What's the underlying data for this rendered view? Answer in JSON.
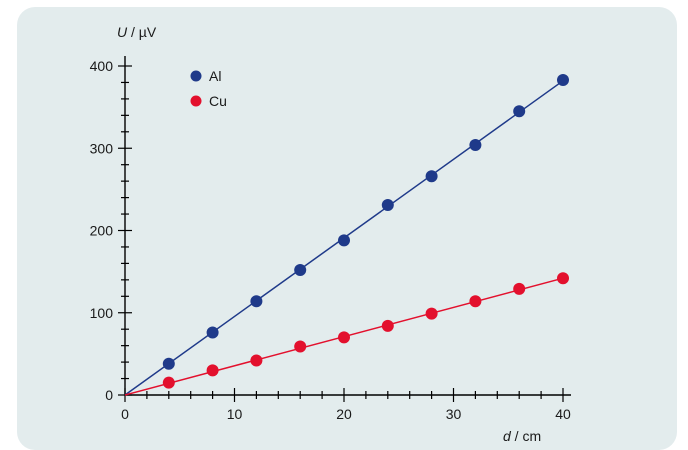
{
  "chart_data": {
    "type": "scatter",
    "xlabel_symbol": "d",
    "xlabel_unit": " / cm",
    "ylabel_symbol": "U",
    "ylabel_unit": " / µV",
    "xlim": [
      0,
      40
    ],
    "ylim": [
      0,
      400
    ],
    "x_major_ticks": [
      0,
      10,
      20,
      30,
      40
    ],
    "y_major_ticks": [
      0,
      100,
      200,
      300,
      400
    ],
    "x_minor_step": 2,
    "y_minor_step": 20,
    "grid": false,
    "legend_position": "top-left",
    "series": [
      {
        "name": "Al",
        "color": "#1f3a8a",
        "x": [
          4,
          8,
          12,
          16,
          20,
          24,
          28,
          32,
          36,
          40
        ],
        "y": [
          38,
          76,
          114,
          152,
          188,
          231,
          266,
          304,
          345,
          383
        ],
        "fit_line": {
          "from": [
            0,
            0
          ],
          "to": [
            40,
            382
          ]
        }
      },
      {
        "name": "Cu",
        "color": "#e3102d",
        "x": [
          4,
          8,
          12,
          16,
          20,
          24,
          28,
          32,
          36,
          40
        ],
        "y": [
          15,
          30,
          42,
          59,
          70,
          84,
          99,
          114,
          129,
          142
        ],
        "fit_line": {
          "from": [
            0,
            0
          ],
          "to": [
            40,
            142
          ]
        }
      }
    ]
  }
}
